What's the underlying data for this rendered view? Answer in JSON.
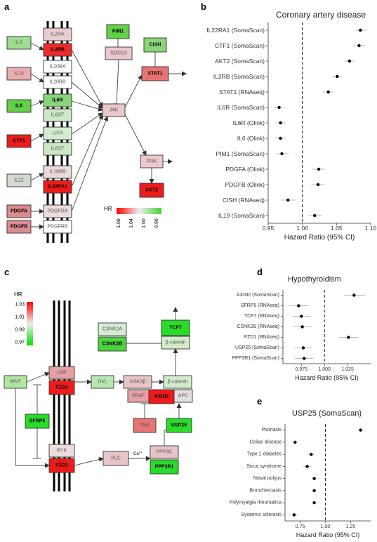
{
  "panels": {
    "a": {
      "label": "a",
      "legend": {
        "title": "HR",
        "ticks": [
          "1.08",
          "1.04",
          "1.00",
          "0.96"
        ]
      },
      "nodes": [
        {
          "id": "IL2",
          "label": "IL2",
          "color": "#9fdc90"
        },
        {
          "id": "IL19",
          "label": "IL19",
          "color": "#e8aeb2"
        },
        {
          "id": "IL6",
          "label": "IL6",
          "color": "#63d04a",
          "bold": true
        },
        {
          "id": "CTF1",
          "label": "CTF1",
          "color": "#ee1b1b",
          "bold": true
        },
        {
          "id": "IL22",
          "label": "IL22",
          "color": "#d4dad2"
        },
        {
          "id": "PDGFA",
          "label": "PDGFA",
          "color": "#dc8c90",
          "bold": true
        },
        {
          "id": "PDGFB",
          "label": "PDGFB",
          "color": "#dc8c90",
          "bold": true
        },
        {
          "id": "IL2RA",
          "label": "IL2RA",
          "color": "#e8cdd0"
        },
        {
          "id": "IL2RB",
          "label": "IL2RB",
          "color": "#ee2a2a",
          "bold": true
        },
        {
          "id": "IL20RA",
          "label": "IL20RA",
          "color": "#ffffff"
        },
        {
          "id": "IL20RB",
          "label": "IL20RB",
          "color": "#ffffff"
        },
        {
          "id": "IL6R",
          "label": "IL6R",
          "color": "#8ad47a",
          "bold": true
        },
        {
          "id": "IL6ST",
          "label": "IL6ST",
          "color": "#cce8c4"
        },
        {
          "id": "LIFR",
          "label": "LIFR",
          "color": "#d6ecd0"
        },
        {
          "id": "IL6ST2",
          "label": "IL6ST",
          "color": "#cce8c4"
        },
        {
          "id": "IL10RB",
          "label": "IL10RB",
          "color": "#ecdada"
        },
        {
          "id": "IL22RA1",
          "label": "IL22RA1",
          "color": "#ee1b1b",
          "bold": true
        },
        {
          "id": "PDGFRA",
          "label": "PDGFRA",
          "color": "#ecdcdc"
        },
        {
          "id": "PDGFRB",
          "label": "PDGFRB",
          "color": "#ffffff"
        },
        {
          "id": "PIM1",
          "label": "PIM1",
          "color": "#63d04a",
          "bold": true
        },
        {
          "id": "SOCS3",
          "label": "SOCS3",
          "color": "#ebc8cc"
        },
        {
          "id": "CISH",
          "label": "CISH",
          "color": "#8ad47a",
          "bold": true
        },
        {
          "id": "STAT1",
          "label": "STAT1",
          "color": "#e67474",
          "bold": true
        },
        {
          "id": "JAK",
          "label": "JAK",
          "color": "#ebc8cc"
        },
        {
          "id": "PI3K",
          "label": "PI3K",
          "color": "#ebc8cc"
        },
        {
          "id": "AKT2",
          "label": "AKT2",
          "color": "#ee1b1b",
          "bold": true
        }
      ]
    },
    "b": {
      "label": "b",
      "chart_data": {
        "type": "forest",
        "title": "Coronary artery disease",
        "xlabel": "Hazard Ratio (95% CI)",
        "xlim": [
          0.95,
          1.1
        ],
        "xticks": [
          0.95,
          1.0,
          1.05,
          1.1
        ],
        "xtick_labels": [
          "0.95",
          "1.00",
          "1.05",
          "1.10"
        ],
        "reference": 1.0,
        "rows": [
          {
            "label": "IL22RA1 (SomaScan)",
            "hr": 1.085,
            "lo": 1.077,
            "hi": 1.094
          },
          {
            "label": "CTF1 (SomaScan)",
            "hr": 1.083,
            "lo": 1.075,
            "hi": 1.092
          },
          {
            "label": "AKT2 (SomaScan)",
            "hr": 1.069,
            "lo": 1.061,
            "hi": 1.077
          },
          {
            "label": "IL2RB (SomaScan)",
            "hr": 1.051,
            "lo": 1.043,
            "hi": 1.059
          },
          {
            "label": "STAT1 (RNAseq)",
            "hr": 1.038,
            "lo": 1.03,
            "hi": 1.046
          },
          {
            "label": "IL6R (SomaScan)",
            "hr": 0.966,
            "lo": 0.958,
            "hi": 0.973
          },
          {
            "label": "IL6R (Olink)",
            "hr": 0.968,
            "lo": 0.96,
            "hi": 0.976
          },
          {
            "label": "IL6 (Olink)",
            "hr": 0.968,
            "lo": 0.96,
            "hi": 0.976
          },
          {
            "label": "PIM1 (SomaScan)",
            "hr": 0.97,
            "lo": 0.962,
            "hi": 0.98
          },
          {
            "label": "PDGFA (Olink)",
            "hr": 1.024,
            "lo": 1.014,
            "hi": 1.034
          },
          {
            "label": "PDGFB (Olink)",
            "hr": 1.023,
            "lo": 1.013,
            "hi": 1.033
          },
          {
            "label": "CISH (RNAseq)",
            "hr": 0.979,
            "lo": 0.969,
            "hi": 0.99
          },
          {
            "label": "IL19 (SomaScan)",
            "hr": 1.018,
            "lo": 1.008,
            "hi": 1.029
          }
        ]
      }
    },
    "c": {
      "label": "c",
      "legend": {
        "title": "HR",
        "ticks": [
          "1.03",
          "1.01",
          "0.99",
          "0.97"
        ]
      },
      "nodes": [
        {
          "id": "WNT",
          "label": "WNT",
          "color": "#b0e6a4"
        },
        {
          "id": "LRP",
          "label": "LRP",
          "color": "#e6a0a4"
        },
        {
          "id": "FZD1a",
          "label": "FZD1",
          "color": "#ee1b1b",
          "bold": true
        },
        {
          "id": "DVL",
          "label": "DVL",
          "color": "#b9e6ae"
        },
        {
          "id": "SFRP5",
          "label": "SFRP5",
          "color": "#2adc2a",
          "bold": true
        },
        {
          "id": "CSNK2A",
          "label": "CSNK2A",
          "color": "#d6ecd0"
        },
        {
          "id": "CSNK2B",
          "label": "CSNK2B",
          "color": "#4cd43c",
          "bold": true
        },
        {
          "id": "TCF7",
          "label": "TCF7",
          "color": "#2adc2a",
          "bold": true
        },
        {
          "id": "bcat1",
          "label": "β-catenin",
          "color": "#d2ecca"
        },
        {
          "id": "GSK3b",
          "label": "GSK3β",
          "color": "#e8c4c8"
        },
        {
          "id": "FRAT",
          "label": "FRAT",
          "color": "#e6a0a4"
        },
        {
          "id": "AXIN2",
          "label": "AXIN2",
          "color": "#ee1b1b",
          "bold": true
        },
        {
          "id": "APC",
          "label": "APC",
          "color": "#e2dede"
        },
        {
          "id": "bcat2",
          "label": "β-catenin",
          "color": "#d2ecca"
        },
        {
          "id": "TNK",
          "label": "TNK",
          "color": "#e67474"
        },
        {
          "id": "USP25",
          "label": "USP25",
          "color": "#2adc2a",
          "bold": true
        },
        {
          "id": "RYK",
          "label": "RYK",
          "color": "#ecdcdc"
        },
        {
          "id": "FZD1b",
          "label": "FZD1",
          "color": "#ee1b1b",
          "bold": true
        },
        {
          "id": "PLC",
          "label": "PLC",
          "color": "#e8c4c8"
        },
        {
          "id": "PPP3C",
          "label": "PPP3C",
          "color": "#e8c4c8"
        },
        {
          "id": "PPP3R1",
          "label": "PPP3R1",
          "color": "#2adc2a",
          "bold": true
        }
      ],
      "ca_label": "Ca"
    },
    "d": {
      "label": "d",
      "chart_data": {
        "type": "forest",
        "title": "Hypothyroidism",
        "xlabel": "Hazard Ratio (95% CI)",
        "xlim": [
          0.955,
          1.05
        ],
        "xticks": [
          0.975,
          1.0,
          1.025
        ],
        "xtick_labels": [
          "0.975",
          "1.000",
          "1.025"
        ],
        "reference": 1.0,
        "rows": [
          {
            "label": "AXIN2 (SomaScan)",
            "hr": 1.032,
            "lo": 1.021,
            "hi": 1.044
          },
          {
            "label": "SFRP5 (RNAseq)",
            "hr": 0.972,
            "lo": 0.962,
            "hi": 0.983
          },
          {
            "label": "TCF7 (RNAseq)",
            "hr": 0.975,
            "lo": 0.965,
            "hi": 0.985
          },
          {
            "label": "CSNK2B (RNAseq)",
            "hr": 0.976,
            "lo": 0.966,
            "hi": 0.986
          },
          {
            "label": "FZD1 (RNAseq)",
            "hr": 1.026,
            "lo": 1.015,
            "hi": 1.037
          },
          {
            "label": "USP25 (SomaScan)",
            "hr": 0.977,
            "lo": 0.967,
            "hi": 0.987
          },
          {
            "label": "PPP3R1 (SomaScan)",
            "hr": 0.978,
            "lo": 0.968,
            "hi": 0.988
          }
        ]
      }
    },
    "e": {
      "label": "e",
      "chart_data": {
        "type": "forest",
        "title": "USP25 (SomaScan)",
        "xlabel": "Hazard Ratio (95% CI)",
        "xlim": [
          0.6,
          1.45
        ],
        "xticks": [
          0.75,
          1.0,
          1.25
        ],
        "xtick_labels": [
          "0.75",
          "1.00",
          "1.25"
        ],
        "reference": 1.0,
        "rows": [
          {
            "label": "Psoriasis",
            "hr": 1.35,
            "lo": 1.33,
            "hi": 1.37
          },
          {
            "label": "Celiac disease",
            "hr": 0.7,
            "lo": 0.68,
            "hi": 0.72
          },
          {
            "label": "Type 1 diabetes",
            "hr": 0.86,
            "lo": 0.83,
            "hi": 0.89
          },
          {
            "label": "Sicca syndrome",
            "hr": 0.82,
            "lo": 0.78,
            "hi": 0.86
          },
          {
            "label": "Nasal polyps",
            "hr": 0.89,
            "lo": 0.87,
            "hi": 0.91
          },
          {
            "label": "Bronchiectasis",
            "hr": 0.89,
            "lo": 0.87,
            "hi": 0.91
          },
          {
            "label": "Polymyalgia rheumatica",
            "hr": 0.89,
            "lo": 0.87,
            "hi": 0.91
          },
          {
            "label": "Systemic sclerosis",
            "hr": 0.69,
            "lo": 0.64,
            "hi": 0.74
          }
        ]
      }
    }
  }
}
